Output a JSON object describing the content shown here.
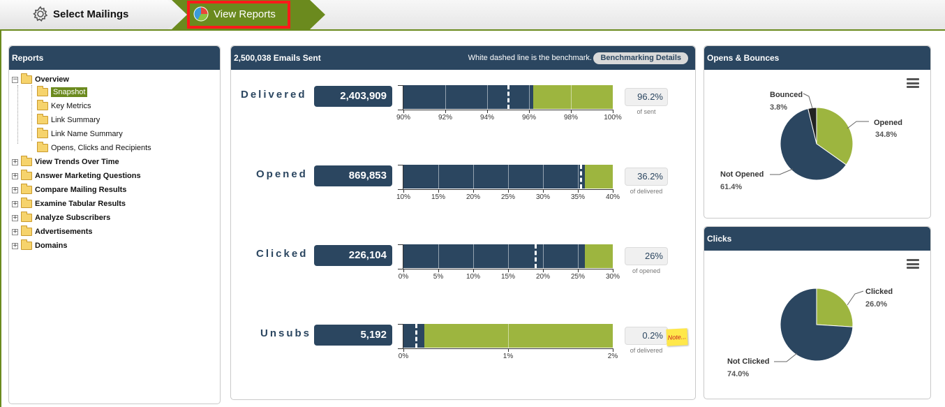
{
  "tabs": [
    {
      "label": "Select Mailings",
      "icon": "gear-icon"
    },
    {
      "label": "View Reports",
      "icon": "pie-chart-icon",
      "active": true
    }
  ],
  "reports_panel": {
    "title": "Reports",
    "tree": [
      {
        "label": "Overview",
        "expanded": true,
        "children": [
          {
            "label": "Snapshot",
            "selected": true
          },
          {
            "label": "Key Metrics"
          },
          {
            "label": "Link Summary"
          },
          {
            "label": "Link Name Summary"
          },
          {
            "label": "Opens, Clicks and Recipients"
          }
        ]
      },
      {
        "label": "View Trends Over Time"
      },
      {
        "label": "Answer Marketing Questions"
      },
      {
        "label": "Compare Mailing Results"
      },
      {
        "label": "Examine Tabular Results"
      },
      {
        "label": "Analyze Subscribers"
      },
      {
        "label": "Advertisements"
      },
      {
        "label": "Domains"
      }
    ]
  },
  "summary": {
    "title": "2,500,038 Emails Sent",
    "benchmark_note": "White dashed line is the benchmark.",
    "benchmark_button": "Benchmarking Details",
    "colors": {
      "primary": "#2b4660",
      "accent": "#9db53f"
    },
    "metrics": [
      {
        "label": "Delivered",
        "value": "2,403,909",
        "percent": "96.2%",
        "sub": "of sent",
        "ticks": [
          "90%",
          "92%",
          "94%",
          "96%",
          "98%",
          "100%"
        ],
        "fill_fraction": 0.62,
        "benchmark_fraction": 0.5
      },
      {
        "label": "Opened",
        "value": "869,853",
        "percent": "36.2%",
        "sub": "of delivered",
        "ticks": [
          "10%",
          "15%",
          "20%",
          "25%",
          "30%",
          "35%",
          "40%"
        ],
        "fill_fraction": 0.865,
        "benchmark_fraction": 0.845
      },
      {
        "label": "Clicked",
        "value": "226,104",
        "percent": "26%",
        "sub": "of opened",
        "ticks": [
          "0%",
          "5%",
          "10%",
          "15%",
          "20%",
          "25%",
          "30%"
        ],
        "fill_fraction": 0.865,
        "benchmark_fraction": 0.63
      },
      {
        "label": "Unsubs",
        "value": "5,192",
        "percent": "0.2%",
        "sub": "of delivered",
        "ticks": [
          "0%",
          "1%",
          "2%"
        ],
        "fill_fraction": 0.1,
        "benchmark_fraction": 0.06,
        "note": "Note..."
      }
    ]
  },
  "opens_bounces": {
    "title": "Opens & Bounces",
    "slices": [
      {
        "name": "Opened",
        "value": 34.8,
        "label": "34.8%",
        "color": "#9db53f"
      },
      {
        "name": "Not Opened",
        "value": 61.4,
        "label": "61.4%",
        "color": "#2b4660"
      },
      {
        "name": "Bounced",
        "value": 3.8,
        "label": "3.8%",
        "color": "#222222"
      }
    ]
  },
  "clicks": {
    "title": "Clicks",
    "slices": [
      {
        "name": "Clicked",
        "value": 26.0,
        "label": "26.0%",
        "color": "#9db53f"
      },
      {
        "name": "Not Clicked",
        "value": 74.0,
        "label": "74.0%",
        "color": "#2b4660"
      }
    ]
  }
}
